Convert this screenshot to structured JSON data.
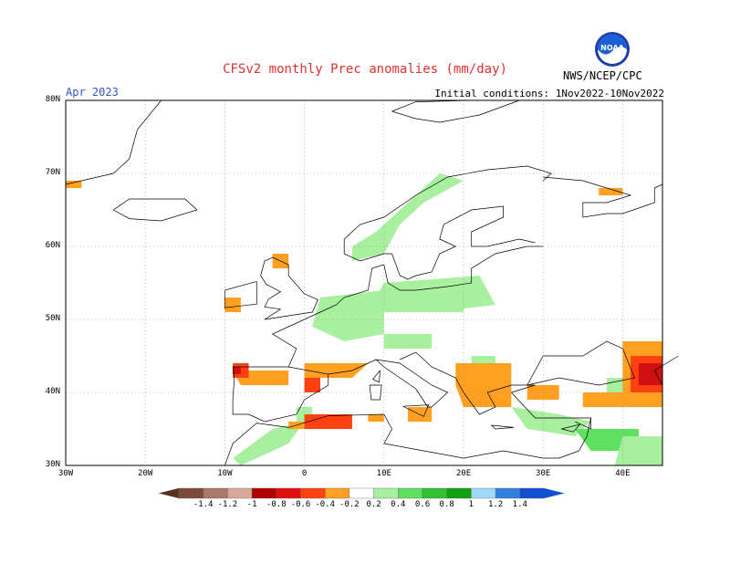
{
  "header": {
    "title": "CFSv2 monthly Prec anomalies (mm/day)",
    "month": "Apr 2023",
    "initial_conditions": "Initial conditions: 1Nov2022-10Nov2022",
    "agency": "NWS/NCEP/CPC",
    "logo_text": "NOAA"
  },
  "map": {
    "lon_range": [
      -30,
      45
    ],
    "lat_range": [
      30,
      80
    ],
    "grid": true,
    "lat_labels": [
      "80N",
      "70N",
      "60N",
      "50N",
      "40N",
      "30N"
    ],
    "lon_labels": [
      "30W",
      "20W",
      "10W",
      "0",
      "10E",
      "20E",
      "30E",
      "40E"
    ],
    "anomaly_colors": {
      "pos_0.2_0.4": "#a8f0a0",
      "pos_0.4_0.6": "#60e060",
      "pos_0.6_0.8": "#30c030",
      "neg_0.2_0.4": "#ffa020",
      "neg_0.4_0.6": "#ff4010",
      "neg_0.6_0.8": "#d01010"
    }
  },
  "colorbar": {
    "labels": [
      "-1.4",
      "-1.2",
      "-1",
      "-0.8",
      "-0.6",
      "-0.4",
      "-0.2",
      "0.2",
      "0.4",
      "0.6",
      "0.8",
      "1",
      "1.2",
      "1.4"
    ],
    "colors": [
      "#7a4a3a",
      "#a87868",
      "#d8a89a",
      "#b00000",
      "#e01010",
      "#ff4010",
      "#ffa020",
      "#ffffff",
      "#a8f0a0",
      "#60e060",
      "#30c030",
      "#10a010",
      "#a0d8f8",
      "#3080e0",
      "#1050d0"
    ],
    "low_end_color": "#5a3020",
    "high_end_color": "#1050d0"
  }
}
